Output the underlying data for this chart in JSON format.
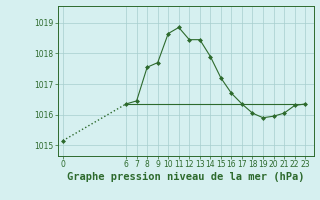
{
  "x": [
    0,
    6,
    7,
    8,
    9,
    10,
    11,
    12,
    13,
    14,
    15,
    16,
    17,
    18,
    19,
    20,
    21,
    22,
    23
  ],
  "y": [
    1015.15,
    1016.35,
    1016.45,
    1017.55,
    1017.7,
    1018.65,
    1018.85,
    1018.45,
    1018.45,
    1017.9,
    1017.2,
    1016.7,
    1016.35,
    1016.05,
    1015.9,
    1015.95,
    1016.05,
    1016.3,
    1016.35
  ],
  "hline_y": 1016.35,
  "hline_x_start": 6,
  "hline_x_end": 23,
  "ylim": [
    1014.65,
    1019.55
  ],
  "xlim": [
    -0.5,
    23.8
  ],
  "yticks": [
    1015,
    1016,
    1017,
    1018,
    1019
  ],
  "xticks": [
    0,
    6,
    7,
    8,
    9,
    10,
    11,
    12,
    13,
    14,
    15,
    16,
    17,
    18,
    19,
    20,
    21,
    22,
    23
  ],
  "xlabel": "Graphe pression niveau de la mer (hPa)",
  "line_color": "#2d6a2d",
  "marker_color": "#2d6a2d",
  "hline_color": "#2d6a2d",
  "bg_color": "#d6f0f0",
  "grid_color": "#a8cece",
  "tick_label_fontsize": 5.5,
  "xlabel_fontsize": 7.5,
  "xlabel_bold": true
}
